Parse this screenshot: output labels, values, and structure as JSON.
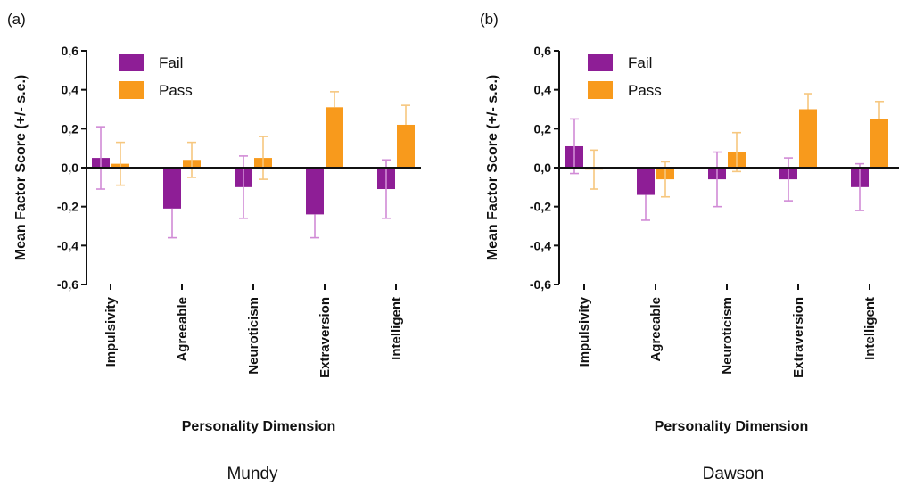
{
  "colors": {
    "fail": "#8E1E96",
    "pass": "#F89A1C",
    "fail_err": "#D18BD6",
    "pass_err": "#F6C77F",
    "axis": "#111111"
  },
  "chart_data": [
    {
      "panel": "(a)",
      "caption": "Mundy",
      "type": "bar",
      "xlabel": "Personality Dimension",
      "ylabel": "Mean Factor Score (+/- s.e.)",
      "ylim": [
        -0.6,
        0.6
      ],
      "yticks": [
        "0,6",
        "0,4",
        "0,2",
        "0,0",
        "-0,2",
        "-0,4",
        "-0,6"
      ],
      "categories": [
        "Impulsivity",
        "Agreeable",
        "Neuroticism",
        "Extraversion",
        "Intelligent"
      ],
      "legend": [
        "Fail",
        "Pass"
      ],
      "series": [
        {
          "name": "Fail",
          "values": [
            0.05,
            -0.21,
            -0.1,
            -0.24,
            -0.11
          ],
          "errors": [
            0.16,
            0.15,
            0.16,
            0.12,
            0.15
          ]
        },
        {
          "name": "Pass",
          "values": [
            0.02,
            0.04,
            0.05,
            0.31,
            0.22
          ],
          "errors": [
            0.11,
            0.09,
            0.11,
            0.08,
            0.1
          ]
        }
      ]
    },
    {
      "panel": "(b)",
      "caption": "Dawson",
      "type": "bar",
      "xlabel": "Personality Dimension",
      "ylabel": "Mean Factor Score (+/- s.e.)",
      "ylim": [
        -0.6,
        0.6
      ],
      "yticks": [
        "0,6",
        "0,4",
        "0,2",
        "0,0",
        "-0,2",
        "-0,4",
        "-0,6"
      ],
      "categories": [
        "Impulsivity",
        "Agreeable",
        "Neuroticism",
        "Extraversion",
        "Intelligent"
      ],
      "legend": [
        "Fail",
        "Pass"
      ],
      "series": [
        {
          "name": "Fail",
          "values": [
            0.11,
            -0.14,
            -0.06,
            -0.06,
            -0.1
          ],
          "errors": [
            0.14,
            0.13,
            0.14,
            0.11,
            0.12
          ]
        },
        {
          "name": "Pass",
          "values": [
            -0.01,
            -0.06,
            0.08,
            0.3,
            0.25
          ],
          "errors": [
            0.1,
            0.09,
            0.1,
            0.08,
            0.09
          ]
        }
      ]
    }
  ]
}
